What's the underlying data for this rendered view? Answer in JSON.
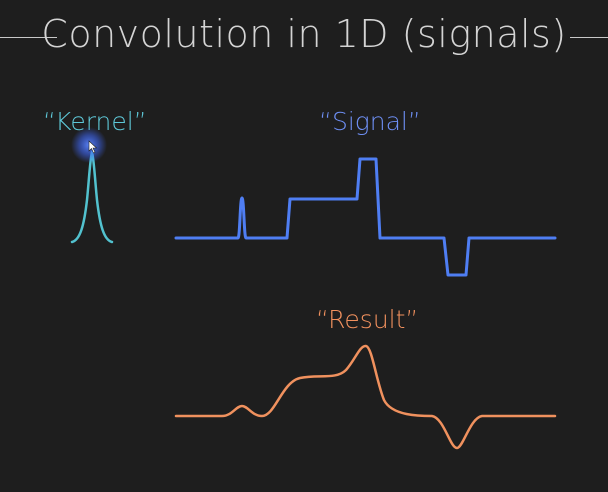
{
  "title": "Convolution in 1D (signals)",
  "labels": {
    "kernel": "“Kernel”",
    "signal": "“Signal”",
    "result": "“Result”"
  },
  "colors": {
    "background": "#1e1e1e",
    "title": "#d4d4d4",
    "kernel": "#52c2cf",
    "signal": "#4f7ef3",
    "result": "#f0915e",
    "cursor_glow": "#3f67f5"
  }
}
